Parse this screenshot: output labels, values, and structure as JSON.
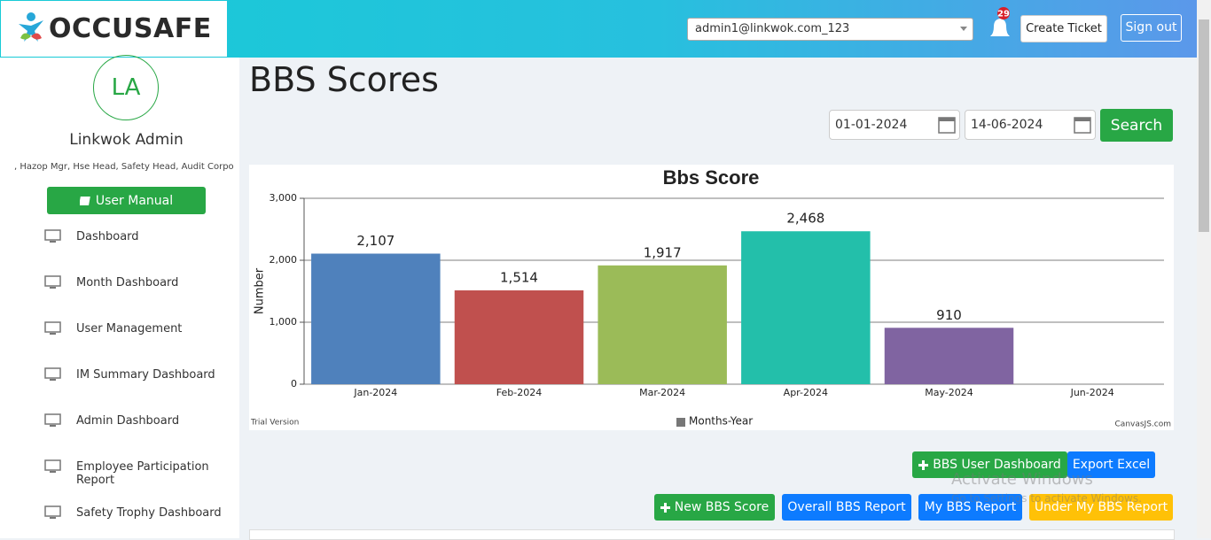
{
  "header": {
    "logo": "OCCUSAFE",
    "user_select": "admin1@linkwok.com_123",
    "notifications": 29,
    "create_ticket": "Create Ticket",
    "sign_out": "Sign out"
  },
  "sidebar": {
    "avatar": "LA",
    "name": "Linkwok Admin",
    "roles": ", Hazop Mgr, Hse Head, Safety Head, Audit Corpo",
    "user_manual": "User Manual",
    "menu": [
      "Dashboard",
      "Month Dashboard",
      "User Management",
      "IM Summary Dashboard",
      "Admin Dashboard",
      "Employee Participation Report",
      "Safety Trophy Dashboard"
    ]
  },
  "page": {
    "title": "BBS Scores",
    "date_from": "01-01-2024",
    "date_to": "14-06-2024",
    "search": "Search",
    "buttons_row1": [
      "BBS User Dashboard",
      "Export Excel"
    ],
    "buttons_row2": [
      "New BBS Score",
      "Overall BBS Report",
      "My BBS Report",
      "Under My BBS Report"
    ]
  },
  "os_overlay": {
    "title": "Activate Windows",
    "subtitle": "Go to Settings to activate Windows."
  },
  "chart_data": {
    "type": "bar",
    "title": "Bbs Score",
    "y_label": "Number",
    "legend": "Months-Year",
    "watermark": "Trial Version",
    "credit": "CanvasJS.com",
    "categories": [
      "Jan-2024",
      "Feb-2024",
      "Mar-2024",
      "Apr-2024",
      "May-2024",
      "Jun-2024"
    ],
    "values": [
      2107,
      1514,
      1917,
      2468,
      910,
      null
    ],
    "value_labels": [
      "2,107",
      "1,514",
      "1,917",
      "2,468",
      "910",
      null
    ],
    "colors": [
      "#4f81bc",
      "#c0504e",
      "#9bbb58",
      "#23bfaa",
      "#8064a1"
    ],
    "ylim": [
      0,
      3000
    ],
    "yticks": [
      0,
      {
        "value": 1000,
        "label": "1,000"
      },
      {
        "value": 2000,
        "label": "2,000"
      },
      {
        "value": 3000,
        "label": "3,000"
      }
    ],
    "grid": true
  }
}
